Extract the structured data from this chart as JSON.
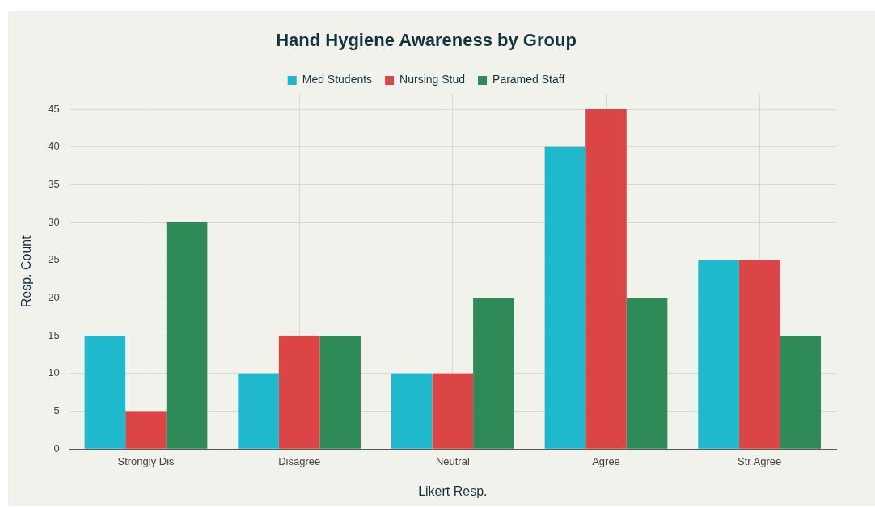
{
  "chart_data": {
    "type": "bar",
    "title": "Hand Hygiene Awareness by Group",
    "xlabel": "Likert Resp.",
    "ylabel": "Resp. Count",
    "categories": [
      "Strongly Dis",
      "Disagree",
      "Neutral",
      "Agree",
      "Str Agree"
    ],
    "series": [
      {
        "name": "Med Students",
        "color": "#1fb8cd",
        "values": [
          15,
          10,
          10,
          40,
          25
        ]
      },
      {
        "name": "Nursing Stud",
        "color": "#db4545",
        "values": [
          5,
          15,
          10,
          45,
          25
        ]
      },
      {
        "name": "Paramed Staff",
        "color": "#2e8b57",
        "values": [
          30,
          15,
          20,
          20,
          15
        ]
      }
    ],
    "ylim": [
      0,
      47
    ],
    "yticks": [
      0,
      5,
      10,
      15,
      20,
      25,
      30,
      35,
      40,
      45
    ],
    "grid": true,
    "legend": "top"
  }
}
